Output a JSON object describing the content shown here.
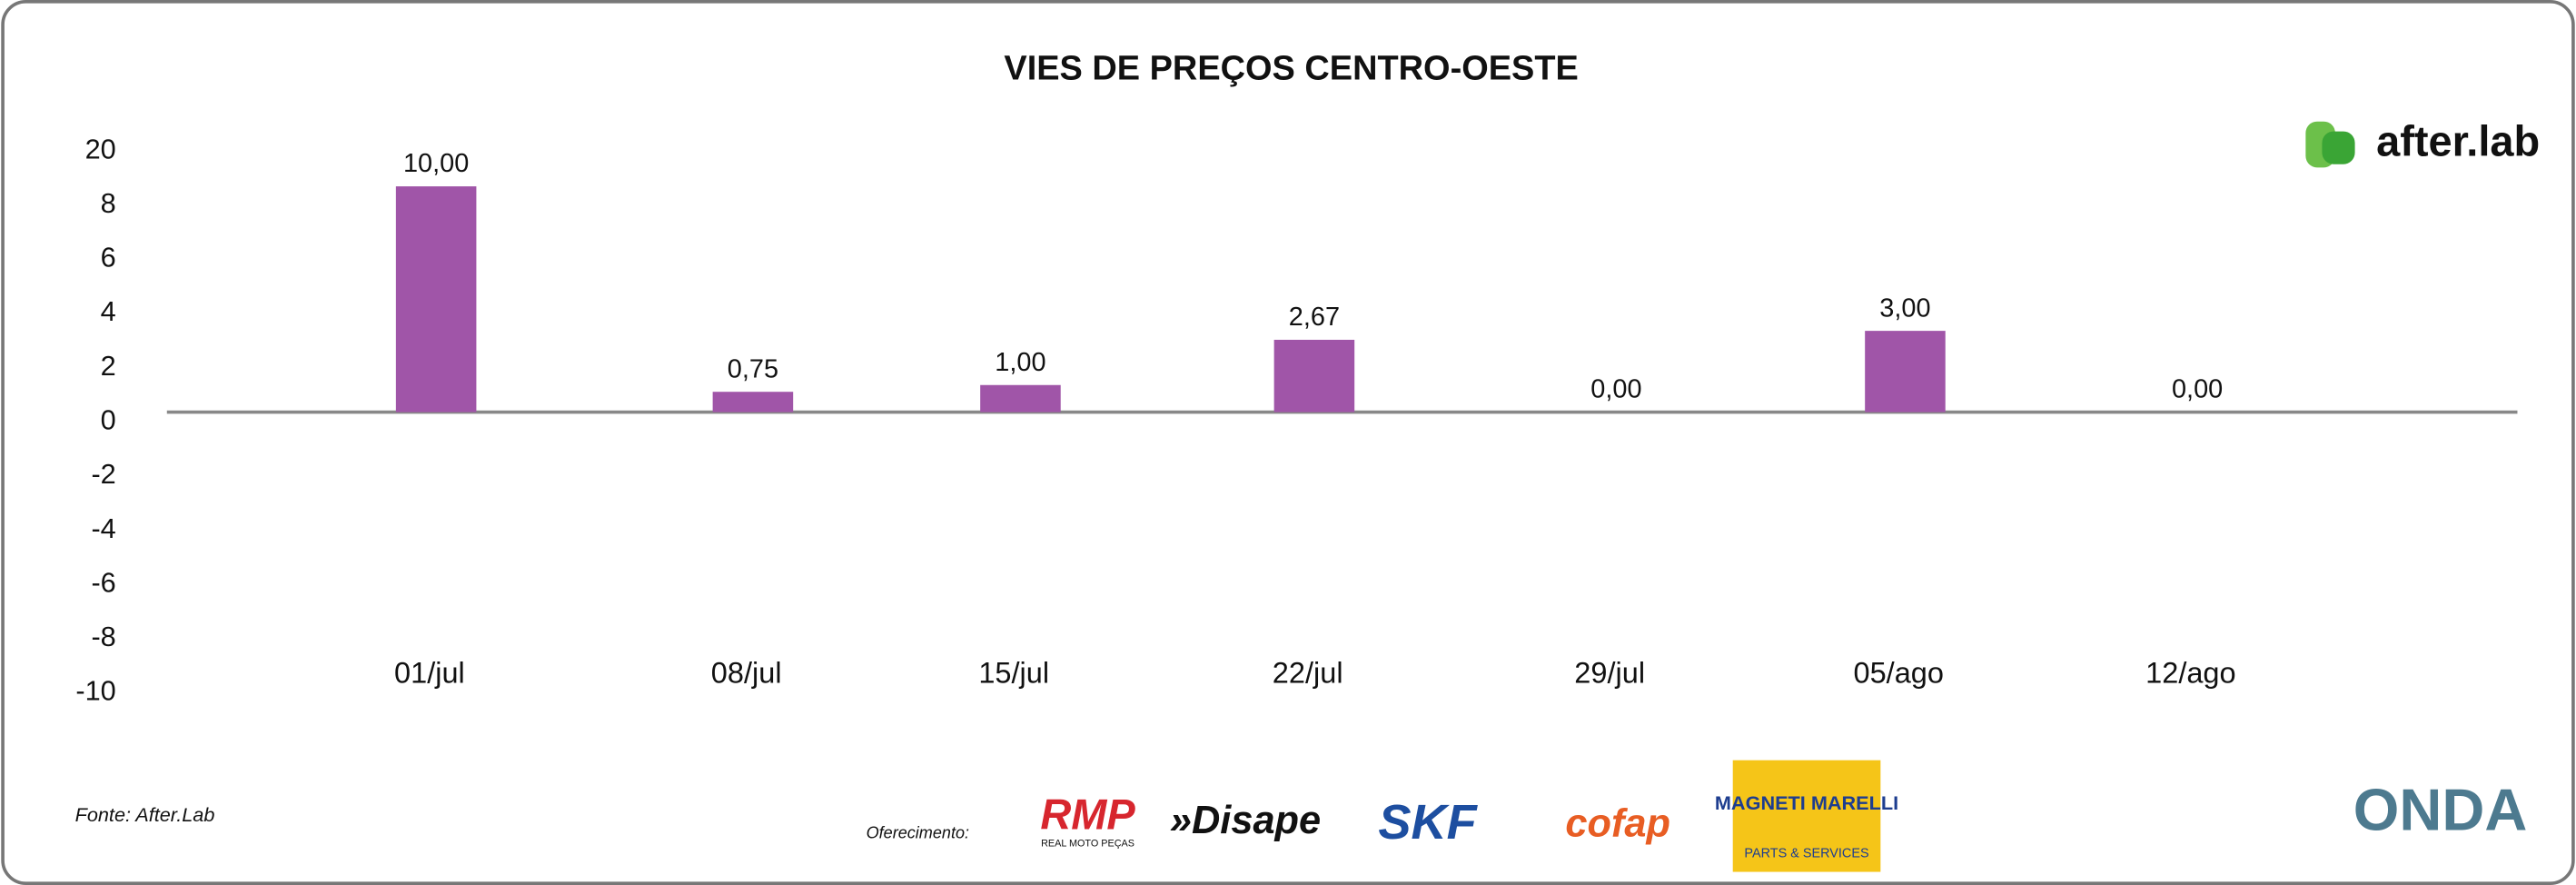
{
  "chart_data": {
    "type": "bar",
    "title": "VIES DE PREÇOS CENTRO-OESTE",
    "categories": [
      "01/jul",
      "08/jul",
      "15/jul",
      "22/jul",
      "29/jul",
      "05/ago",
      "12/ago"
    ],
    "values": [
      10,
      0.75,
      1,
      2.67,
      0,
      3,
      0
    ],
    "value_labels": [
      "10,00",
      "0,75",
      "1,00",
      "2,67",
      "0,00",
      "3,00",
      "0,00"
    ],
    "color": "#a055a8",
    "ylim": [
      -10,
      20
    ],
    "yticks": [
      -10,
      -8,
      -6,
      -4,
      -2,
      0,
      2,
      4,
      6,
      8,
      20
    ],
    "grid": false
  },
  "logo": "after.lab",
  "source": "Fonte: After.Lab",
  "sponsors": {
    "label": "Oferecimento:",
    "rmp": "RMP",
    "rmp_sub": "REAL MOTO PEÇAS",
    "disape": "»Disape",
    "skf": "SKF",
    "cofap": "cofap",
    "magneti": "MAGNETI MARELLI",
    "magneti_sub": "PARTS & SERVICES",
    "onda": "ONDA"
  }
}
